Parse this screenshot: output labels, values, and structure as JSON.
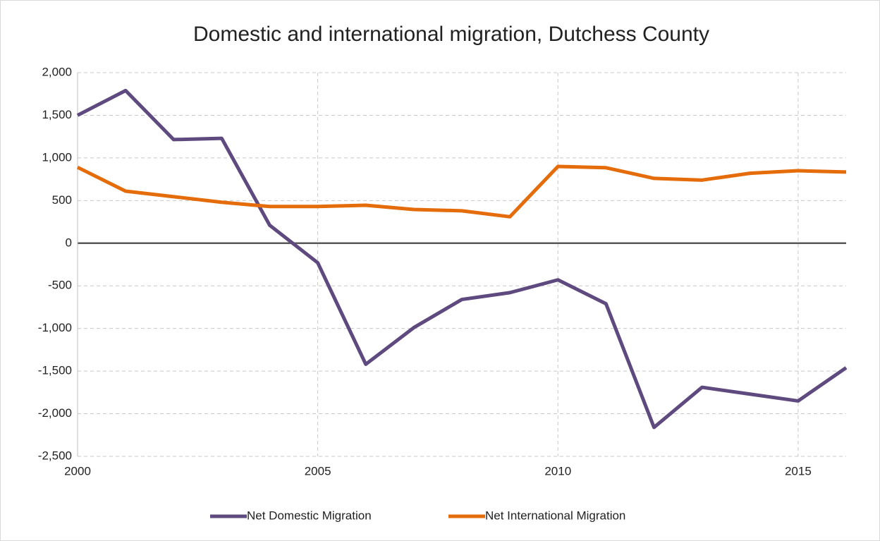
{
  "chart_data": {
    "type": "line",
    "title": "Domestic and international migration, Dutchess County",
    "x": [
      2000,
      2001,
      2002,
      2003,
      2004,
      2005,
      2006,
      2007,
      2008,
      2009,
      2010,
      2011,
      2012,
      2013,
      2014,
      2015,
      2016
    ],
    "series": [
      {
        "name": "Net Domestic Migration",
        "color": "#5e4a7e",
        "values": [
          1500,
          1790,
          1215,
          1230,
          210,
          -230,
          -1420,
          -990,
          -660,
          -580,
          -430,
          -710,
          -2160,
          -1690,
          -1770,
          -1850,
          -1460
        ]
      },
      {
        "name": "Net International Migration",
        "color": "#e46c0a",
        "values": [
          890,
          610,
          545,
          480,
          430,
          430,
          445,
          395,
          380,
          310,
          900,
          885,
          760,
          740,
          820,
          850,
          835
        ]
      }
    ],
    "xlim": [
      2000,
      2016
    ],
    "xticks": [
      2000,
      2005,
      2010,
      2015
    ],
    "ylim": [
      -2500,
      2000
    ],
    "yticks": [
      {
        "value": 2000,
        "label": "2,000"
      },
      {
        "value": 1500,
        "label": "1,500"
      },
      {
        "value": 1000,
        "label": "1,000"
      },
      500,
      0,
      -500,
      {
        "value": -1000,
        "label": "-1,000"
      },
      {
        "value": -1500,
        "label": "-1,500"
      },
      {
        "value": -2000,
        "label": "-2,000"
      },
      {
        "value": -2500,
        "label": "-2,500"
      }
    ],
    "grid": true,
    "legend": "bottom"
  }
}
